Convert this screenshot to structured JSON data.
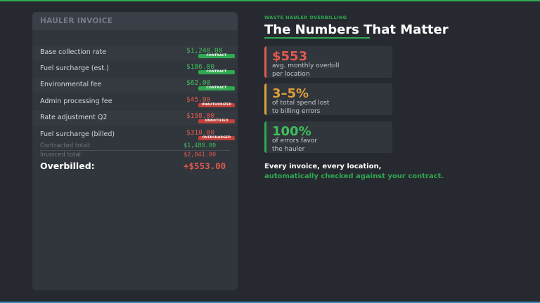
{
  "colors": {
    "background": "#262a30",
    "accent_green": "#2fa84f",
    "accent_red": "#e05a4f",
    "accent_orange": "#e0a03a",
    "bottom_bar": "#3a8fb7"
  },
  "invoice": {
    "header": "HAULER INVOICE",
    "items": [
      {
        "label": "Base collection rate",
        "amount": "$1,240.00",
        "badge": "CONTRACT",
        "status": "ok"
      },
      {
        "label": "Fuel surcharge (est.)",
        "amount": "$186.00",
        "badge": "CONTRACT",
        "status": "ok"
      },
      {
        "label": "Environmental fee",
        "amount": "$62.00",
        "badge": "CONTRACT",
        "status": "ok"
      },
      {
        "label": "Admin processing fee",
        "amount": "$45.00",
        "badge": "UNAUTHORIZED",
        "status": "bad"
      },
      {
        "label": "Rate adjustment Q2",
        "amount": "$198.00",
        "badge": "UNNOTIFIED",
        "status": "bad"
      },
      {
        "label": "Fuel surcharge (billed)",
        "amount": "$310.00",
        "badge": "OVERCHARGED",
        "status": "bad"
      }
    ],
    "contracted_total_label": "Contracted total:",
    "contracted_total": "$1,488.00",
    "invoiced_total_label": "Invoiced total:",
    "invoiced_total": "$2,041.00",
    "overbilled_label": "Overbilled:",
    "overbilled_value": "+$553.00"
  },
  "panel": {
    "eyebrow": "WASTE HAULER OVERBILLING",
    "title": "The Numbers That Matter",
    "stats": [
      {
        "value": "$553",
        "line1": "avg. monthly overbill",
        "line2": "per location",
        "color": "#e05a4f"
      },
      {
        "value": "3–5%",
        "line1": "of total spend lost",
        "line2": "to billing errors",
        "color": "#e0a03a"
      },
      {
        "value": "100%",
        "line1": "of errors favor",
        "line2": "the hauler",
        "color": "#3fbf5c"
      }
    ],
    "cta_line1": "Every invoice, every location,",
    "cta_line2": "automatically checked against your contract."
  }
}
